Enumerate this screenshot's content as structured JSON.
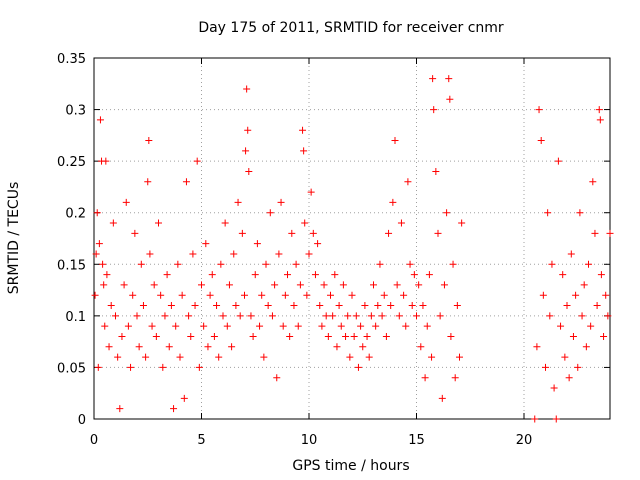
{
  "chart_data": {
    "type": "scatter",
    "title": "Day 175 of 2011, SRMTID for receiver cnmr",
    "xlabel": "GPS time / hours",
    "ylabel": "SRMTID / TECUs",
    "xlim": [
      0,
      24
    ],
    "ylim": [
      0,
      0.35
    ],
    "x_ticks": [
      "0",
      "5",
      "10",
      "15",
      "20"
    ],
    "x_tick_values": [
      0,
      5,
      10,
      15,
      20
    ],
    "y_ticks": [
      "0",
      "0.05",
      "0.1",
      "0.15",
      "0.2",
      "0.25",
      "0.3",
      "0.35"
    ],
    "y_tick_values": [
      0,
      0.05,
      0.1,
      0.15,
      0.2,
      0.25,
      0.3,
      0.35
    ],
    "grid": true,
    "marker": "plus",
    "series_color": "#ff0000",
    "series": [
      {
        "name": "SRMTID",
        "points": [
          [
            0.05,
            0.12
          ],
          [
            0.1,
            0.16
          ],
          [
            0.15,
            0.2
          ],
          [
            0.2,
            0.05
          ],
          [
            0.25,
            0.17
          ],
          [
            0.3,
            0.29
          ],
          [
            0.35,
            0.25
          ],
          [
            0.4,
            0.15
          ],
          [
            0.45,
            0.13
          ],
          [
            0.5,
            0.09
          ],
          [
            0.55,
            0.25
          ],
          [
            0.6,
            0.14
          ],
          [
            0.7,
            0.07
          ],
          [
            0.8,
            0.11
          ],
          [
            0.9,
            0.19
          ],
          [
            1.0,
            0.1
          ],
          [
            1.1,
            0.06
          ],
          [
            1.2,
            0.01
          ],
          [
            1.3,
            0.08
          ],
          [
            1.4,
            0.13
          ],
          [
            1.5,
            0.21
          ],
          [
            1.6,
            0.09
          ],
          [
            1.7,
            0.05
          ],
          [
            1.8,
            0.12
          ],
          [
            1.9,
            0.18
          ],
          [
            2.0,
            0.1
          ],
          [
            2.1,
            0.07
          ],
          [
            2.2,
            0.15
          ],
          [
            2.3,
            0.11
          ],
          [
            2.4,
            0.06
          ],
          [
            2.5,
            0.23
          ],
          [
            2.55,
            0.27
          ],
          [
            2.6,
            0.16
          ],
          [
            2.7,
            0.09
          ],
          [
            2.8,
            0.13
          ],
          [
            2.9,
            0.08
          ],
          [
            3.0,
            0.19
          ],
          [
            3.1,
            0.12
          ],
          [
            3.2,
            0.05
          ],
          [
            3.3,
            0.1
          ],
          [
            3.4,
            0.14
          ],
          [
            3.5,
            0.07
          ],
          [
            3.6,
            0.11
          ],
          [
            3.7,
            0.01
          ],
          [
            3.8,
            0.09
          ],
          [
            3.9,
            0.15
          ],
          [
            4.0,
            0.06
          ],
          [
            4.1,
            0.12
          ],
          [
            4.2,
            0.02
          ],
          [
            4.3,
            0.23
          ],
          [
            4.4,
            0.1
          ],
          [
            4.5,
            0.08
          ],
          [
            4.6,
            0.16
          ],
          [
            4.7,
            0.11
          ],
          [
            4.8,
            0.25
          ],
          [
            4.9,
            0.05
          ],
          [
            5.0,
            0.13
          ],
          [
            5.1,
            0.09
          ],
          [
            5.2,
            0.17
          ],
          [
            5.3,
            0.07
          ],
          [
            5.4,
            0.12
          ],
          [
            5.5,
            0.14
          ],
          [
            5.6,
            0.08
          ],
          [
            5.7,
            0.11
          ],
          [
            5.8,
            0.06
          ],
          [
            5.9,
            0.15
          ],
          [
            6.0,
            0.1
          ],
          [
            6.1,
            0.19
          ],
          [
            6.2,
            0.09
          ],
          [
            6.3,
            0.13
          ],
          [
            6.4,
            0.07
          ],
          [
            6.5,
            0.16
          ],
          [
            6.6,
            0.11
          ],
          [
            6.7,
            0.21
          ],
          [
            6.8,
            0.1
          ],
          [
            6.9,
            0.18
          ],
          [
            7.0,
            0.12
          ],
          [
            7.05,
            0.26
          ],
          [
            7.1,
            0.32
          ],
          [
            7.15,
            0.28
          ],
          [
            7.2,
            0.24
          ],
          [
            7.3,
            0.1
          ],
          [
            7.4,
            0.08
          ],
          [
            7.5,
            0.14
          ],
          [
            7.6,
            0.17
          ],
          [
            7.7,
            0.09
          ],
          [
            7.8,
            0.12
          ],
          [
            7.9,
            0.06
          ],
          [
            8.0,
            0.15
          ],
          [
            8.1,
            0.11
          ],
          [
            8.2,
            0.2
          ],
          [
            8.3,
            0.1
          ],
          [
            8.4,
            0.13
          ],
          [
            8.5,
            0.04
          ],
          [
            8.6,
            0.16
          ],
          [
            8.7,
            0.21
          ],
          [
            8.8,
            0.09
          ],
          [
            8.9,
            0.12
          ],
          [
            9.0,
            0.14
          ],
          [
            9.1,
            0.08
          ],
          [
            9.2,
            0.18
          ],
          [
            9.3,
            0.11
          ],
          [
            9.4,
            0.15
          ],
          [
            9.5,
            0.09
          ],
          [
            9.6,
            0.13
          ],
          [
            9.7,
            0.28
          ],
          [
            9.75,
            0.26
          ],
          [
            9.8,
            0.19
          ],
          [
            9.9,
            0.12
          ],
          [
            10.0,
            0.16
          ],
          [
            10.1,
            0.22
          ],
          [
            10.2,
            0.18
          ],
          [
            10.3,
            0.14
          ],
          [
            10.4,
            0.17
          ],
          [
            10.5,
            0.11
          ],
          [
            10.6,
            0.09
          ],
          [
            10.7,
            0.13
          ],
          [
            10.8,
            0.1
          ],
          [
            10.9,
            0.08
          ],
          [
            11.0,
            0.12
          ],
          [
            11.1,
            0.1
          ],
          [
            11.2,
            0.14
          ],
          [
            11.3,
            0.07
          ],
          [
            11.4,
            0.11
          ],
          [
            11.5,
            0.09
          ],
          [
            11.6,
            0.13
          ],
          [
            11.7,
            0.08
          ],
          [
            11.8,
            0.1
          ],
          [
            11.9,
            0.06
          ],
          [
            12.0,
            0.12
          ],
          [
            12.1,
            0.08
          ],
          [
            12.2,
            0.1
          ],
          [
            12.3,
            0.05
          ],
          [
            12.4,
            0.09
          ],
          [
            12.5,
            0.07
          ],
          [
            12.6,
            0.11
          ],
          [
            12.7,
            0.08
          ],
          [
            12.8,
            0.06
          ],
          [
            12.9,
            0.1
          ],
          [
            13.0,
            0.13
          ],
          [
            13.1,
            0.09
          ],
          [
            13.2,
            0.11
          ],
          [
            13.3,
            0.15
          ],
          [
            13.4,
            0.1
          ],
          [
            13.5,
            0.12
          ],
          [
            13.6,
            0.08
          ],
          [
            13.7,
            0.18
          ],
          [
            13.8,
            0.11
          ],
          [
            13.9,
            0.21
          ],
          [
            14.0,
            0.27
          ],
          [
            14.1,
            0.13
          ],
          [
            14.2,
            0.1
          ],
          [
            14.3,
            0.19
          ],
          [
            14.4,
            0.12
          ],
          [
            14.5,
            0.09
          ],
          [
            14.6,
            0.23
          ],
          [
            14.7,
            0.15
          ],
          [
            14.8,
            0.11
          ],
          [
            14.9,
            0.14
          ],
          [
            15.0,
            0.1
          ],
          [
            15.1,
            0.13
          ],
          [
            15.2,
            0.07
          ],
          [
            15.3,
            0.11
          ],
          [
            15.4,
            0.04
          ],
          [
            15.5,
            0.09
          ],
          [
            15.6,
            0.14
          ],
          [
            15.7,
            0.06
          ],
          [
            15.75,
            0.33
          ],
          [
            15.8,
            0.3
          ],
          [
            15.9,
            0.24
          ],
          [
            16.0,
            0.18
          ],
          [
            16.1,
            0.1
          ],
          [
            16.2,
            0.02
          ],
          [
            16.3,
            0.13
          ],
          [
            16.4,
            0.2
          ],
          [
            16.5,
            0.33
          ],
          [
            16.55,
            0.31
          ],
          [
            16.6,
            0.08
          ],
          [
            16.7,
            0.15
          ],
          [
            16.8,
            0.04
          ],
          [
            16.9,
            0.11
          ],
          [
            17.0,
            0.06
          ],
          [
            17.1,
            0.19
          ],
          [
            20.5,
            0.0
          ],
          [
            20.6,
            0.07
          ],
          [
            20.7,
            0.3
          ],
          [
            20.8,
            0.27
          ],
          [
            20.9,
            0.12
          ],
          [
            21.0,
            0.05
          ],
          [
            21.1,
            0.2
          ],
          [
            21.2,
            0.1
          ],
          [
            21.3,
            0.15
          ],
          [
            21.4,
            0.03
          ],
          [
            21.5,
            0.0
          ],
          [
            21.6,
            0.25
          ],
          [
            21.7,
            0.09
          ],
          [
            21.8,
            0.14
          ],
          [
            21.9,
            0.06
          ],
          [
            22.0,
            0.11
          ],
          [
            22.1,
            0.04
          ],
          [
            22.2,
            0.16
          ],
          [
            22.3,
            0.08
          ],
          [
            22.4,
            0.12
          ],
          [
            22.5,
            0.05
          ],
          [
            22.6,
            0.2
          ],
          [
            22.7,
            0.1
          ],
          [
            22.8,
            0.13
          ],
          [
            22.9,
            0.07
          ],
          [
            23.0,
            0.15
          ],
          [
            23.1,
            0.09
          ],
          [
            23.2,
            0.23
          ],
          [
            23.3,
            0.18
          ],
          [
            23.4,
            0.11
          ],
          [
            23.5,
            0.3
          ],
          [
            23.55,
            0.29
          ],
          [
            23.6,
            0.14
          ],
          [
            23.7,
            0.08
          ],
          [
            23.8,
            0.12
          ],
          [
            23.9,
            0.1
          ],
          [
            24.0,
            0.18
          ]
        ]
      }
    ]
  }
}
